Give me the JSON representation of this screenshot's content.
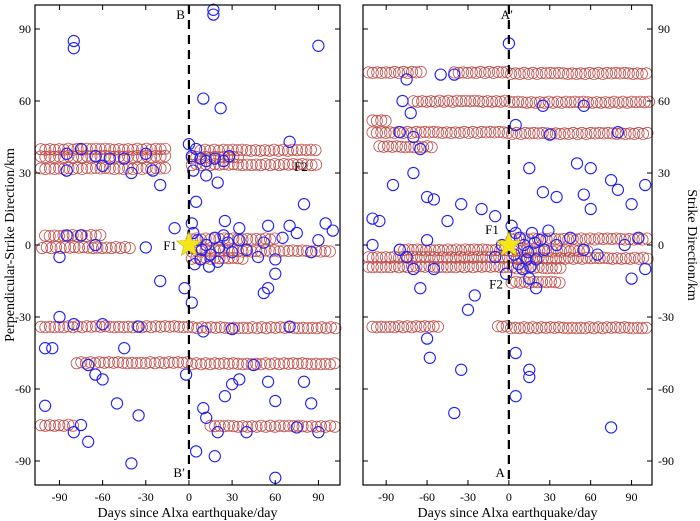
{
  "colors": {
    "background": "#ffffff",
    "red_series": "#c0504d",
    "blue_series": "#1f1fff",
    "star": "#f5e61a",
    "axis": "#000000"
  },
  "chart_data": [
    {
      "type": "scatter",
      "panel": "left",
      "xlabel": "Days since Alxa earthquake/day",
      "ylabel": "Perpendicular-Strike Direction/km",
      "xlim": [
        -107,
        105
      ],
      "ylim": [
        -100,
        100
      ],
      "xticks": [
        -90,
        -60,
        -30,
        0,
        30,
        60,
        90
      ],
      "yticks": [
        -90,
        -60,
        -30,
        0,
        30,
        60,
        90
      ],
      "line_label_top": "B",
      "line_label_bottom": "B′",
      "annotations": [
        {
          "text": "F1",
          "x": -5,
          "y": 0
        },
        {
          "text": "F2",
          "x": 73,
          "y": 33
        }
      ],
      "red_bands": [
        {
          "y": 39.5,
          "x_from": -103,
          "x_to": -15
        },
        {
          "y": 36.5,
          "x_from": -103,
          "x_to": -15
        },
        {
          "y": 31.5,
          "x_from": -103,
          "x_to": -15
        },
        {
          "y": 39.5,
          "x_from": 8,
          "x_to": 90
        },
        {
          "y": 36.5,
          "x_from": 2,
          "x_to": 35
        },
        {
          "y": 33.5,
          "x_from": 2,
          "x_to": 90
        },
        {
          "y": 3.5,
          "x_from": -100,
          "x_to": -60
        },
        {
          "y": -1.5,
          "x_from": -102,
          "x_to": -40
        },
        {
          "y": -2.5,
          "x_from": 2,
          "x_to": 100
        },
        {
          "y": 2.5,
          "x_from": 2,
          "x_to": 60
        },
        {
          "y": -5.5,
          "x_from": 2,
          "x_to": 40
        },
        {
          "y": -34.5,
          "x_from": -103,
          "x_to": 103
        },
        {
          "y": -49.5,
          "x_from": -78,
          "x_to": 103
        },
        {
          "y": -75.5,
          "x_from": -103,
          "x_to": -78
        },
        {
          "y": -75.5,
          "x_from": 15,
          "x_to": 103
        }
      ],
      "blue_points": [
        [
          -80,
          85
        ],
        [
          -80,
          82
        ],
        [
          17,
          98
        ],
        [
          17,
          96
        ],
        [
          90,
          83
        ],
        [
          10,
          61
        ],
        [
          22,
          57
        ],
        [
          0,
          42
        ],
        [
          5,
          40
        ],
        [
          70,
          43
        ],
        [
          -85,
          38
        ],
        [
          -75,
          40
        ],
        [
          -65,
          37
        ],
        [
          -55,
          36
        ],
        [
          -45,
          36
        ],
        [
          -30,
          38
        ],
        [
          -85,
          31
        ],
        [
          -60,
          33
        ],
        [
          -40,
          30
        ],
        [
          -25,
          31
        ],
        [
          2,
          37
        ],
        [
          8,
          36
        ],
        [
          12,
          35
        ],
        [
          18,
          36
        ],
        [
          24,
          35
        ],
        [
          28,
          37
        ],
        [
          3,
          31
        ],
        [
          12,
          29
        ],
        [
          20,
          26
        ],
        [
          -20,
          25
        ],
        [
          5,
          18
        ],
        [
          2,
          9
        ],
        [
          -10,
          7
        ],
        [
          25,
          10
        ],
        [
          35,
          7
        ],
        [
          55,
          8
        ],
        [
          70,
          8
        ],
        [
          80,
          17
        ],
        [
          95,
          9
        ],
        [
          -85,
          4
        ],
        [
          -75,
          4
        ],
        [
          -65,
          0
        ],
        [
          -90,
          -5
        ],
        [
          -30,
          -1
        ],
        [
          -20,
          -15
        ],
        [
          3,
          5
        ],
        [
          6,
          2
        ],
        [
          9,
          -2
        ],
        [
          12,
          0
        ],
        [
          15,
          -4
        ],
        [
          18,
          3
        ],
        [
          21,
          -1
        ],
        [
          24,
          4
        ],
        [
          27,
          1
        ],
        [
          30,
          -3
        ],
        [
          4,
          -8
        ],
        [
          8,
          -6
        ],
        [
          14,
          -9
        ],
        [
          20,
          -7
        ],
        [
          35,
          2
        ],
        [
          40,
          -2
        ],
        [
          48,
          -5
        ],
        [
          52,
          1
        ],
        [
          60,
          -6
        ],
        [
          65,
          3
        ],
        [
          75,
          5
        ],
        [
          85,
          -3
        ],
        [
          90,
          2
        ],
        [
          100,
          6
        ],
        [
          -3,
          -18
        ],
        [
          2,
          -24
        ],
        [
          60,
          -12
        ],
        [
          52,
          -20
        ],
        [
          55,
          -18
        ],
        [
          -90,
          -30
        ],
        [
          -80,
          -33
        ],
        [
          -60,
          -33
        ],
        [
          -35,
          -34
        ],
        [
          10,
          -36
        ],
        [
          30,
          -35
        ],
        [
          70,
          -34
        ],
        [
          -100,
          -43
        ],
        [
          -95,
          -43
        ],
        [
          -45,
          -43
        ],
        [
          -70,
          -50
        ],
        [
          -65,
          -54
        ],
        [
          -60,
          -56
        ],
        [
          -2,
          -54
        ],
        [
          30,
          -58
        ],
        [
          35,
          -56
        ],
        [
          45,
          -50
        ],
        [
          55,
          -57
        ],
        [
          25,
          -63
        ],
        [
          60,
          -65
        ],
        [
          80,
          -57
        ],
        [
          85,
          -66
        ],
        [
          -100,
          -67
        ],
        [
          -35,
          -71
        ],
        [
          -50,
          -66
        ],
        [
          -80,
          -78
        ],
        [
          -75,
          -75
        ],
        [
          -70,
          -82
        ],
        [
          10,
          -68
        ],
        [
          12,
          -72
        ],
        [
          20,
          -78
        ],
        [
          40,
          -78
        ],
        [
          90,
          -78
        ],
        [
          5,
          -86
        ],
        [
          18,
          -88
        ],
        [
          -40,
          -91
        ],
        [
          60,
          -97
        ],
        [
          75,
          -76
        ]
      ]
    },
    {
      "type": "scatter",
      "panel": "right",
      "xlabel": "Days since Alxa earthquake/day",
      "ylabel": "Strike Direction/km",
      "xlim": [
        -107,
        105
      ],
      "ylim": [
        -100,
        100
      ],
      "xticks": [
        -90,
        -60,
        -30,
        0,
        30,
        60,
        90
      ],
      "yticks": [
        -90,
        -60,
        -30,
        0,
        30,
        60,
        90
      ],
      "line_label_top": "A′",
      "line_label_bottom": "A",
      "annotations": [
        {
          "text": "F1",
          "x": -14,
          "y": 3
        },
        {
          "text": "F2",
          "x": 8,
          "y": -14
        }
      ],
      "red_bands": [
        {
          "y": 71.5,
          "x_from": -103,
          "x_to": -62
        },
        {
          "y": 71.5,
          "x_from": -40,
          "x_to": 103
        },
        {
          "y": 59.5,
          "x_from": -70,
          "x_to": 103
        },
        {
          "y": 51.5,
          "x_from": -100,
          "x_to": -90
        },
        {
          "y": 46.5,
          "x_from": -100,
          "x_to": 103
        },
        {
          "y": 40.5,
          "x_from": -95,
          "x_to": -55
        },
        {
          "y": -5.5,
          "x_from": -103,
          "x_to": 103
        },
        {
          "y": -9.5,
          "x_from": -103,
          "x_to": 40
        },
        {
          "y": 2.5,
          "x_from": 2,
          "x_to": 103
        },
        {
          "y": -2.5,
          "x_from": -80,
          "x_to": 60
        },
        {
          "y": -15.5,
          "x_from": 2,
          "x_to": 40
        },
        {
          "y": -34.5,
          "x_from": -100,
          "x_to": -50
        },
        {
          "y": -34.5,
          "x_from": -8,
          "x_to": 103
        }
      ],
      "blue_points": [
        [
          0,
          84
        ],
        [
          -40,
          71
        ],
        [
          -50,
          71
        ],
        [
          -75,
          69
        ],
        [
          -78,
          60
        ],
        [
          -72,
          55
        ],
        [
          25,
          58
        ],
        [
          55,
          58
        ],
        [
          5,
          50
        ],
        [
          30,
          46
        ],
        [
          80,
          47
        ],
        [
          -80,
          47
        ],
        [
          -70,
          45
        ],
        [
          -65,
          40
        ],
        [
          15,
          32
        ],
        [
          50,
          34
        ],
        [
          60,
          32
        ],
        [
          -70,
          30
        ],
        [
          -85,
          25
        ],
        [
          25,
          22
        ],
        [
          35,
          20
        ],
        [
          55,
          21
        ],
        [
          80,
          23
        ],
        [
          -60,
          20
        ],
        [
          -55,
          19
        ],
        [
          -100,
          11
        ],
        [
          -95,
          10
        ],
        [
          -45,
          10
        ],
        [
          -35,
          17
        ],
        [
          -20,
          15
        ],
        [
          -10,
          12
        ],
        [
          75,
          27
        ],
        [
          100,
          25
        ],
        [
          90,
          17
        ],
        [
          60,
          15
        ],
        [
          2,
          8
        ],
        [
          5,
          5
        ],
        [
          8,
          3
        ],
        [
          11,
          0
        ],
        [
          14,
          -3
        ],
        [
          17,
          5
        ],
        [
          20,
          -6
        ],
        [
          23,
          2
        ],
        [
          26,
          -2
        ],
        [
          29,
          6
        ],
        [
          4,
          -4
        ],
        [
          7,
          -8
        ],
        [
          10,
          -10
        ],
        [
          13,
          -6
        ],
        [
          16,
          -9
        ],
        [
          19,
          1
        ],
        [
          35,
          0
        ],
        [
          45,
          3
        ],
        [
          55,
          -2
        ],
        [
          65,
          -4
        ],
        [
          85,
          0
        ],
        [
          95,
          3
        ],
        [
          -5,
          0
        ],
        [
          -10,
          -5
        ],
        [
          -2,
          -12
        ],
        [
          -80,
          -2
        ],
        [
          -75,
          -5
        ],
        [
          -70,
          -10
        ],
        [
          -65,
          -18
        ],
        [
          -100,
          0
        ],
        [
          -60,
          2
        ],
        [
          -55,
          -10
        ],
        [
          90,
          -14
        ],
        [
          100,
          -10
        ],
        [
          15,
          -14
        ],
        [
          20,
          -18
        ],
        [
          -30,
          -27
        ],
        [
          -25,
          -21
        ],
        [
          5,
          -45
        ],
        [
          15,
          -52
        ],
        [
          15,
          -55
        ],
        [
          -35,
          -52
        ],
        [
          -40,
          -70
        ],
        [
          5,
          -63
        ],
        [
          -60,
          -39
        ],
        [
          -58,
          -47
        ],
        [
          75,
          -76
        ]
      ]
    }
  ]
}
